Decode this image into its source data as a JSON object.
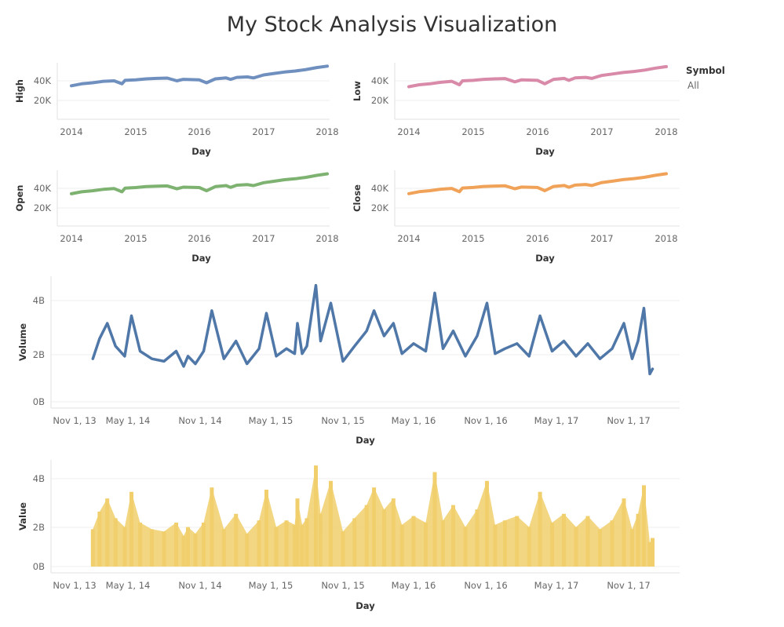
{
  "title": "My Stock Analysis Visualization",
  "legend": {
    "title": "Symbol",
    "items": [
      "All"
    ]
  },
  "colors": {
    "high": "#6f8fbf",
    "low": "#d88aa8",
    "open": "#7db271",
    "close": "#f0a259",
    "volume": "#4f77a8",
    "value": "#f0cf6c"
  },
  "chart_data": [
    {
      "type": "line",
      "ylabel": "High",
      "xlabel": "Day",
      "x_ticks": [
        "2014",
        "2015",
        "2016",
        "2017",
        "2018"
      ],
      "y_ticks": [
        "20K",
        "40K"
      ],
      "xlim": [
        "2014-01-02",
        "2018-01-01"
      ],
      "ylim": [
        0,
        60000
      ],
      "series": [
        {
          "x": [
            "2014-01-02",
            "2014-03-01",
            "2014-05-01",
            "2014-07-01",
            "2014-09-01",
            "2014-10-15",
            "2014-11-01",
            "2015-01-01",
            "2015-03-01",
            "2015-05-01",
            "2015-07-01",
            "2015-08-25",
            "2015-10-01",
            "2016-01-01",
            "2016-02-11",
            "2016-04-01",
            "2016-06-01",
            "2016-06-27",
            "2016-08-01",
            "2016-10-01",
            "2016-11-04",
            "2017-01-01",
            "2017-03-01",
            "2017-05-01",
            "2017-07-01",
            "2017-09-01",
            "2017-11-01",
            "2018-01-01"
          ],
          "y": [
            35000,
            37000,
            38000,
            39500,
            40000,
            37000,
            40500,
            41000,
            42000,
            42500,
            42800,
            40000,
            41500,
            41000,
            38000,
            42000,
            43000,
            41500,
            43500,
            44000,
            43000,
            46000,
            47500,
            49000,
            50000,
            51500,
            53500,
            55000
          ]
        }
      ]
    },
    {
      "type": "line",
      "ylabel": "Low",
      "xlabel": "Day",
      "x_ticks": [
        "2014",
        "2015",
        "2016",
        "2017",
        "2018"
      ],
      "y_ticks": [
        "20K",
        "40K"
      ],
      "xlim": [
        "2014-01-02",
        "2018-01-01"
      ],
      "ylim": [
        0,
        60000
      ],
      "series": [
        {
          "x": [
            "2014-01-02",
            "2014-03-01",
            "2014-05-01",
            "2014-07-01",
            "2014-09-01",
            "2014-10-15",
            "2014-11-01",
            "2015-01-01",
            "2015-03-01",
            "2015-05-01",
            "2015-07-01",
            "2015-08-25",
            "2015-10-01",
            "2016-01-01",
            "2016-02-11",
            "2016-04-01",
            "2016-06-01",
            "2016-06-27",
            "2016-08-01",
            "2016-10-01",
            "2016-11-04",
            "2017-01-01",
            "2017-03-01",
            "2017-05-01",
            "2017-07-01",
            "2017-09-01",
            "2017-11-01",
            "2018-01-01"
          ],
          "y": [
            34000,
            36000,
            37000,
            38500,
            39500,
            36000,
            40000,
            40500,
            41500,
            42000,
            42300,
            39000,
            41000,
            40500,
            37000,
            41500,
            42500,
            40500,
            43000,
            43500,
            42500,
            45500,
            47000,
            48500,
            49500,
            51000,
            53000,
            54500
          ]
        }
      ]
    },
    {
      "type": "line",
      "ylabel": "Open",
      "xlabel": "Day",
      "x_ticks": [
        "2014",
        "2015",
        "2016",
        "2017",
        "2018"
      ],
      "y_ticks": [
        "20K",
        "40K"
      ],
      "xlim": [
        "2014-01-02",
        "2018-01-01"
      ],
      "ylim": [
        0,
        60000
      ],
      "series": [
        {
          "x": [
            "2014-01-02",
            "2014-03-01",
            "2014-05-01",
            "2014-07-01",
            "2014-09-01",
            "2014-10-15",
            "2014-11-01",
            "2015-01-01",
            "2015-03-01",
            "2015-05-01",
            "2015-07-01",
            "2015-08-25",
            "2015-10-01",
            "2016-01-01",
            "2016-02-11",
            "2016-04-01",
            "2016-06-01",
            "2016-06-27",
            "2016-08-01",
            "2016-10-01",
            "2016-11-04",
            "2017-01-01",
            "2017-03-01",
            "2017-05-01",
            "2017-07-01",
            "2017-09-01",
            "2017-11-01",
            "2018-01-01"
          ],
          "y": [
            34500,
            36500,
            37500,
            39000,
            39800,
            36500,
            40200,
            40800,
            41800,
            42200,
            42500,
            39500,
            41200,
            40800,
            37500,
            41800,
            42800,
            41000,
            43200,
            43800,
            42800,
            45800,
            47200,
            48800,
            49800,
            51200,
            53200,
            54800
          ]
        }
      ]
    },
    {
      "type": "line",
      "ylabel": "Close",
      "xlabel": "Day",
      "x_ticks": [
        "2014",
        "2015",
        "2016",
        "2017",
        "2018"
      ],
      "y_ticks": [
        "20K",
        "40K"
      ],
      "xlim": [
        "2014-01-02",
        "2018-01-01"
      ],
      "ylim": [
        0,
        60000
      ],
      "series": [
        {
          "x": [
            "2014-01-02",
            "2014-03-01",
            "2014-05-01",
            "2014-07-01",
            "2014-09-01",
            "2014-10-15",
            "2014-11-01",
            "2015-01-01",
            "2015-03-01",
            "2015-05-01",
            "2015-07-01",
            "2015-08-25",
            "2015-10-01",
            "2016-01-01",
            "2016-02-11",
            "2016-04-01",
            "2016-06-01",
            "2016-06-27",
            "2016-08-01",
            "2016-10-01",
            "2016-11-04",
            "2017-01-01",
            "2017-03-01",
            "2017-05-01",
            "2017-07-01",
            "2017-09-01",
            "2017-11-01",
            "2018-01-01"
          ],
          "y": [
            34600,
            36600,
            37600,
            39100,
            39900,
            36600,
            40300,
            40900,
            41900,
            42300,
            42600,
            39600,
            41300,
            40900,
            37600,
            41900,
            42900,
            41100,
            43300,
            43900,
            42900,
            45900,
            47300,
            48900,
            49900,
            51300,
            53300,
            54900
          ]
        }
      ]
    },
    {
      "type": "line",
      "ylabel": "Volume",
      "xlabel": "Day",
      "x_ticks": [
        "Nov 1, 13",
        "May 1, 14",
        "Nov 1, 14",
        "May 1, 15",
        "Nov 1, 15",
        "May 1, 16",
        "Nov 1, 16",
        "May 1, 17",
        "Nov 1, 17"
      ],
      "y_ticks": [
        "0B",
        "2B",
        "4B"
      ],
      "xlim": [
        "2013-11-01",
        "2018-04-01"
      ],
      "ylim": [
        0,
        4.8
      ],
      "series": [
        {
          "x": [
            "2014-01-02",
            "2014-01-25",
            "2014-02-20",
            "2014-03-20",
            "2014-04-20",
            "2014-05-10",
            "2014-06-01",
            "2014-07-01",
            "2014-08-01",
            "2014-09-01",
            "2014-09-20",
            "2014-10-01",
            "2014-10-20",
            "2014-11-10",
            "2014-12-01",
            "2015-01-01",
            "2015-02-01",
            "2015-03-01",
            "2015-04-01",
            "2015-04-20",
            "2015-05-15",
            "2015-06-10",
            "2015-07-01",
            "2015-07-08",
            "2015-07-20",
            "2015-08-01",
            "2015-08-24",
            "2015-09-05",
            "2015-10-01",
            "2015-11-01",
            "2015-12-01",
            "2016-01-01",
            "2016-01-20",
            "2016-02-15",
            "2016-03-10",
            "2016-04-01",
            "2016-05-01",
            "2016-06-01",
            "2016-06-24",
            "2016-07-15",
            "2016-08-10",
            "2016-09-10",
            "2016-10-10",
            "2016-11-04",
            "2016-11-25",
            "2016-12-20",
            "2017-01-20",
            "2017-02-20",
            "2017-03-20",
            "2017-04-20",
            "2017-05-20",
            "2017-06-20",
            "2017-07-20",
            "2017-08-20",
            "2017-09-20",
            "2017-10-20",
            "2017-11-10",
            "2017-11-25",
            "2017-12-10",
            "2017-12-25",
            "2018-01-01"
          ],
          "y": [
            1.7,
            2.5,
            3.1,
            2.2,
            1.8,
            3.4,
            2.0,
            1.7,
            1.6,
            2.0,
            1.4,
            1.8,
            1.5,
            2.0,
            3.6,
            1.7,
            2.4,
            1.5,
            2.1,
            3.5,
            1.8,
            2.1,
            1.9,
            3.1,
            1.9,
            2.2,
            4.6,
            2.4,
            3.9,
            1.6,
            2.2,
            2.8,
            3.6,
            2.6,
            3.1,
            1.9,
            2.3,
            2.0,
            4.3,
            2.1,
            2.8,
            1.8,
            2.6,
            3.9,
            1.9,
            2.1,
            2.3,
            1.8,
            3.4,
            2.0,
            2.4,
            1.8,
            2.3,
            1.7,
            2.1,
            3.1,
            1.7,
            2.4,
            3.7,
            1.1,
            1.3
          ]
        }
      ]
    },
    {
      "type": "bar",
      "ylabel": "Value",
      "xlabel": "Day",
      "x_ticks": [
        "Nov 1, 13",
        "May 1, 14",
        "Nov 1, 14",
        "May 1, 15",
        "Nov 1, 15",
        "May 1, 16",
        "Nov 1, 16",
        "May 1, 17",
        "Nov 1, 17"
      ],
      "y_ticks": [
        "0B",
        "2B",
        "4B"
      ],
      "xlim": [
        "2013-11-01",
        "2018-04-01"
      ],
      "ylim": [
        0,
        4.8
      ],
      "series": [
        {
          "x": [
            "2014-01-02",
            "2014-01-25",
            "2014-02-20",
            "2014-03-20",
            "2014-04-20",
            "2014-05-10",
            "2014-06-01",
            "2014-07-01",
            "2014-08-01",
            "2014-09-01",
            "2014-09-20",
            "2014-10-01",
            "2014-10-20",
            "2014-11-10",
            "2014-12-01",
            "2015-01-01",
            "2015-02-01",
            "2015-03-01",
            "2015-04-01",
            "2015-04-20",
            "2015-05-15",
            "2015-06-10",
            "2015-07-01",
            "2015-07-08",
            "2015-07-20",
            "2015-08-01",
            "2015-08-24",
            "2015-09-05",
            "2015-10-01",
            "2015-11-01",
            "2015-12-01",
            "2016-01-01",
            "2016-01-20",
            "2016-02-15",
            "2016-03-10",
            "2016-04-01",
            "2016-05-01",
            "2016-06-01",
            "2016-06-24",
            "2016-07-15",
            "2016-08-10",
            "2016-09-10",
            "2016-10-10",
            "2016-11-04",
            "2016-11-25",
            "2016-12-20",
            "2017-01-20",
            "2017-02-20",
            "2017-03-20",
            "2017-04-20",
            "2017-05-20",
            "2017-06-20",
            "2017-07-20",
            "2017-08-20",
            "2017-09-20",
            "2017-10-20",
            "2017-11-10",
            "2017-11-25",
            "2017-12-10",
            "2017-12-25",
            "2018-01-01"
          ],
          "y": [
            1.7,
            2.5,
            3.1,
            2.2,
            1.8,
            3.4,
            2.0,
            1.7,
            1.6,
            2.0,
            1.4,
            1.8,
            1.5,
            2.0,
            3.6,
            1.7,
            2.4,
            1.5,
            2.1,
            3.5,
            1.8,
            2.1,
            1.9,
            3.1,
            1.9,
            2.2,
            4.6,
            2.4,
            3.9,
            1.6,
            2.2,
            2.8,
            3.6,
            2.6,
            3.1,
            1.9,
            2.3,
            2.0,
            4.3,
            2.1,
            2.8,
            1.8,
            2.6,
            3.9,
            1.9,
            2.1,
            2.3,
            1.8,
            3.4,
            2.0,
            2.4,
            1.8,
            2.3,
            1.7,
            2.1,
            3.1,
            1.7,
            2.4,
            3.7,
            1.1,
            1.3
          ]
        }
      ]
    }
  ]
}
